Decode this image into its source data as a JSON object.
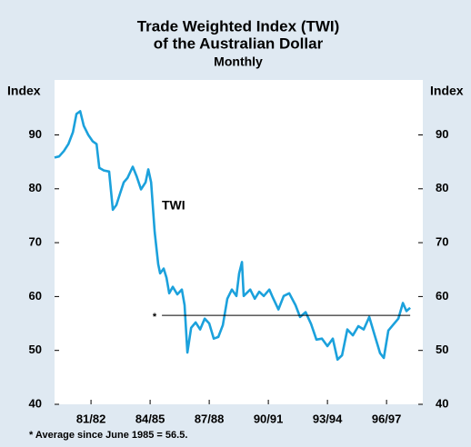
{
  "chart_data": {
    "type": "line",
    "title": "Trade Weighted Index (TWI)",
    "title_line2": "of the Australian Dollar",
    "subtitle": "Monthly",
    "y_label": "Index",
    "y2_label": "Index",
    "mirror_y_axis": true,
    "grid": false,
    "ylim": [
      40,
      100.2
    ],
    "yticks": [
      40,
      50,
      60,
      70,
      80,
      90
    ],
    "xlim": [
      1980.15,
      1998.84
    ],
    "xticks": [
      {
        "value": 1982,
        "label": "81/82"
      },
      {
        "value": 1985,
        "label": "84/85"
      },
      {
        "value": 1988,
        "label": "87/88"
      },
      {
        "value": 1991,
        "label": "90/91"
      },
      {
        "value": 1994,
        "label": "93/94"
      },
      {
        "value": 1997,
        "label": "96/97"
      }
    ],
    "series": [
      {
        "name": "TWI",
        "color": "#1ba1dc",
        "x": [
          1980.15,
          1980.38,
          1980.62,
          1980.85,
          1981.08,
          1981.26,
          1981.45,
          1981.63,
          1981.86,
          1982.09,
          1982.28,
          1982.42,
          1982.65,
          1982.92,
          1983.11,
          1983.29,
          1983.48,
          1983.66,
          1983.85,
          1984.12,
          1984.31,
          1984.54,
          1984.77,
          1984.91,
          1985.05,
          1985.23,
          1985.41,
          1985.51,
          1985.69,
          1985.83,
          1985.97,
          1986.15,
          1986.38,
          1986.61,
          1986.75,
          1986.89,
          1987.08,
          1987.31,
          1987.54,
          1987.77,
          1988.0,
          1988.23,
          1988.46,
          1988.69,
          1988.92,
          1989.15,
          1989.38,
          1989.52,
          1989.66,
          1989.75,
          1990.08,
          1990.31,
          1990.54,
          1990.77,
          1991.05,
          1991.23,
          1991.51,
          1991.78,
          1992.06,
          1992.38,
          1992.61,
          1992.89,
          1993.17,
          1993.44,
          1993.72,
          1994.0,
          1994.27,
          1994.51,
          1994.74,
          1995.01,
          1995.29,
          1995.57,
          1995.84,
          1996.12,
          1996.4,
          1996.67,
          1996.86,
          1997.09,
          1997.32,
          1997.6,
          1997.83,
          1998.01,
          1998.2
        ],
        "values": [
          85.8,
          86,
          87,
          88.3,
          90.5,
          93.9,
          94.4,
          91.7,
          90,
          88.8,
          88.3,
          83.9,
          83.4,
          83.2,
          76.1,
          77,
          79.2,
          81.2,
          82,
          84.1,
          82.4,
          79.9,
          81.2,
          83.6,
          81.2,
          72,
          66,
          64.3,
          65.2,
          63.5,
          60.6,
          61.8,
          60.4,
          61.3,
          58.4,
          49.6,
          54.2,
          55.2,
          53.9,
          55.9,
          55,
          52.2,
          52.5,
          54.7,
          59.6,
          61.3,
          60.1,
          64.3,
          66.4,
          60.1,
          61.3,
          59.6,
          60.9,
          60.1,
          61.3,
          59.8,
          57.6,
          60.1,
          60.6,
          58.4,
          56.2,
          57.1,
          54.9,
          52,
          52.2,
          50.8,
          52.2,
          48.3,
          49.1,
          53.9,
          52.8,
          54.5,
          53.9,
          56.2,
          52.8,
          49.5,
          48.6,
          53.7,
          54.7,
          55.9,
          58.8,
          57.3,
          57.9
        ]
      }
    ],
    "average": {
      "value": 56.5,
      "x": [
        1985.6,
        1998.2
      ],
      "marker": "*",
      "color": "#000000"
    },
    "footnote": "* Average since June 1985 = 56.5."
  }
}
